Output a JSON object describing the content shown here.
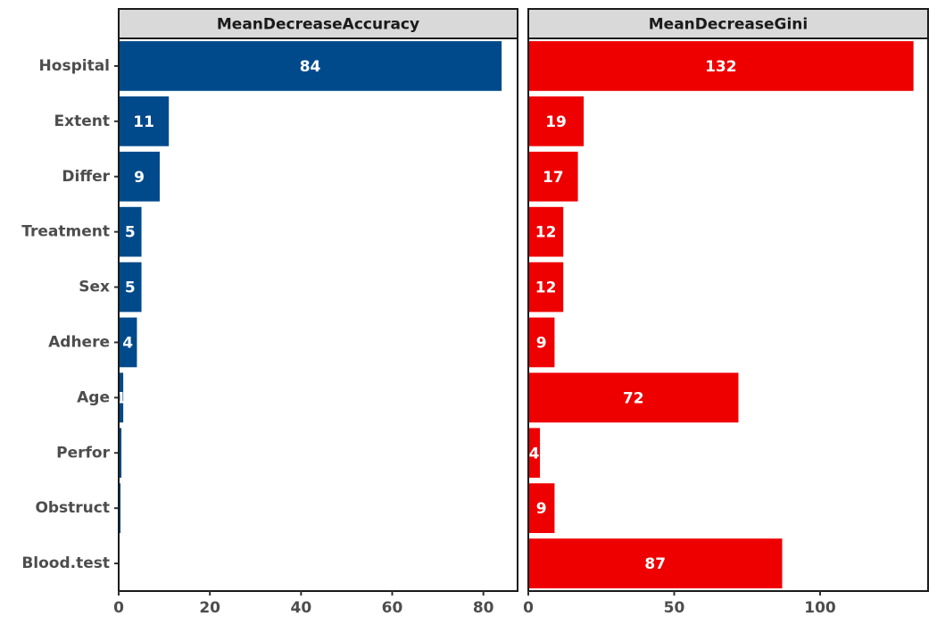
{
  "chart_data": {
    "type": "bar",
    "orientation": "horizontal",
    "categories": [
      "Hospital",
      "Extent",
      "Differ",
      "Treatment",
      "Sex",
      "Adhere",
      "Age",
      "Perfor",
      "Obstruct",
      "Blood.test"
    ],
    "panels": [
      {
        "name": "MeanDecreaseAccuracy",
        "color": "#004a8b",
        "values": [
          84,
          11,
          9,
          5,
          5,
          4,
          1,
          0.6,
          0.4,
          0
        ],
        "labels": [
          "84",
          "11",
          "9",
          "5",
          "5",
          "4",
          "1",
          "",
          "",
          ""
        ],
        "xlim": [
          0,
          87.5
        ],
        "ticks": [
          0,
          20,
          40,
          60,
          80
        ]
      },
      {
        "name": "MeanDecreaseGini",
        "color": "#ee0000",
        "values": [
          132,
          19,
          17,
          12,
          12,
          9,
          72,
          4,
          9,
          87
        ],
        "labels": [
          "132",
          "19",
          "17",
          "12",
          "12",
          "9",
          "72",
          "4",
          "9",
          "87"
        ],
        "xlim": [
          0,
          137
        ],
        "ticks": [
          0,
          50,
          100
        ]
      }
    ],
    "grid": false,
    "legend": "none"
  }
}
